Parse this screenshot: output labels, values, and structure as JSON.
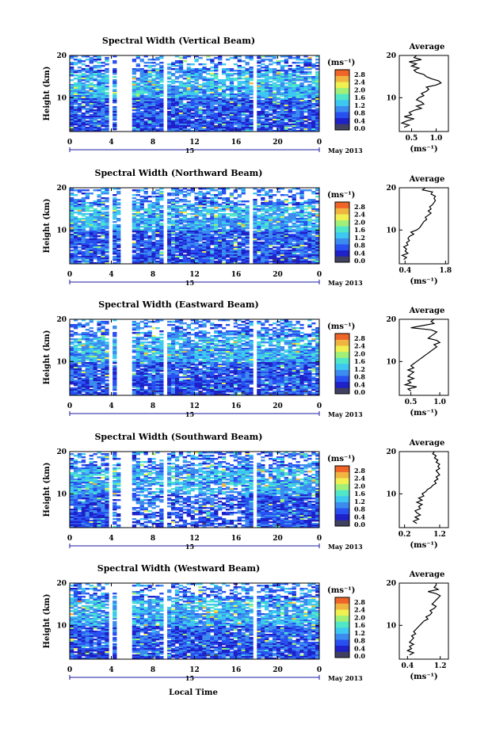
{
  "figure": {
    "xlabel": "Local Time",
    "date_label": "May 2013",
    "day_label": "15",
    "colorbar_unit": "(ms⁻¹)",
    "avg_xlabel": "(ms⁻¹)",
    "avg_title": "Average",
    "ylabel": "Height (km)",
    "colorbar_ticks": [
      "0.0",
      "0.4",
      "0.8",
      "1.2",
      "1.6",
      "2.0",
      "2.4",
      "2.8"
    ],
    "colormap": [
      "#404060",
      "#1e20c8",
      "#2850f0",
      "#3c8cf0",
      "#3cc8f0",
      "#50e6c8",
      "#a0f078",
      "#f0f050",
      "#f0b440",
      "#f06428",
      "#d81818"
    ]
  },
  "chart_data": [
    {
      "type": "heatmap",
      "title": "Spectral Width (Vertical Beam)",
      "xlim": [
        0,
        24
      ],
      "ylim": [
        2,
        20
      ],
      "xticks": [
        "0",
        "4",
        "8",
        "12",
        "16",
        "20",
        "0"
      ],
      "yticks": [
        "10",
        "20"
      ],
      "gaps_hours": [
        [
          3.9,
          4.2
        ],
        [
          4.6,
          5.9
        ],
        [
          8.9,
          9.4
        ],
        [
          17.6,
          17.9
        ]
      ],
      "clim": [
        0,
        3.0
      ],
      "avg": {
        "xticks": [
          "0.5",
          "1.0"
        ],
        "xlim": [
          0.25,
          1.25
        ],
        "yticks": [
          "10",
          "20"
        ],
        "profile": [
          [
            3,
            0.35
          ],
          [
            3.5,
            0.45
          ],
          [
            4,
            0.3
          ],
          [
            4.5,
            0.4
          ],
          [
            5,
            0.55
          ],
          [
            5.5,
            0.35
          ],
          [
            6,
            0.5
          ],
          [
            6.5,
            0.45
          ],
          [
            7,
            0.55
          ],
          [
            7.5,
            0.7
          ],
          [
            8,
            0.6
          ],
          [
            8.5,
            0.75
          ],
          [
            9,
            0.7
          ],
          [
            9.5,
            0.6
          ],
          [
            10,
            0.65
          ],
          [
            10.5,
            0.75
          ],
          [
            11,
            0.7
          ],
          [
            11.5,
            0.8
          ],
          [
            12,
            0.85
          ],
          [
            12.5,
            0.8
          ],
          [
            13,
            1.0
          ],
          [
            13.5,
            1.1
          ],
          [
            14,
            1.05
          ],
          [
            14.5,
            0.9
          ],
          [
            15,
            0.8
          ],
          [
            15.5,
            0.75
          ],
          [
            16,
            0.6
          ],
          [
            16.5,
            0.55
          ],
          [
            17,
            0.65
          ],
          [
            17.5,
            0.5
          ],
          [
            18,
            0.6
          ],
          [
            18.5,
            0.45
          ],
          [
            19,
            0.7
          ],
          [
            19.5,
            0.55
          ],
          [
            20,
            0.6
          ]
        ]
      }
    },
    {
      "type": "heatmap",
      "title": "Spectral Width (Northward Beam)",
      "xlim": [
        0,
        24
      ],
      "ylim": [
        2,
        20
      ],
      "xticks": [
        "0",
        "4",
        "8",
        "12",
        "16",
        "20",
        "0"
      ],
      "yticks": [
        "10",
        "20"
      ],
      "gaps_hours": [
        [
          3.9,
          4.3
        ],
        [
          4.7,
          5.9
        ],
        [
          8.9,
          9.3
        ],
        [
          17.3,
          17.6
        ]
      ],
      "clim": [
        0,
        3.0
      ],
      "avg": {
        "xticks": [
          "0.4",
          "1.8"
        ],
        "xlim": [
          0.2,
          1.9
        ],
        "yticks": [
          "10",
          "20"
        ],
        "profile": [
          [
            3,
            0.35
          ],
          [
            3.5,
            0.45
          ],
          [
            4,
            0.3
          ],
          [
            4.5,
            0.5
          ],
          [
            5,
            0.4
          ],
          [
            5.5,
            0.45
          ],
          [
            6,
            0.35
          ],
          [
            6.5,
            0.5
          ],
          [
            7,
            0.45
          ],
          [
            7.5,
            0.55
          ],
          [
            8,
            0.5
          ],
          [
            8.5,
            0.55
          ],
          [
            9,
            0.7
          ],
          [
            9.5,
            0.6
          ],
          [
            10,
            0.8
          ],
          [
            10.5,
            0.9
          ],
          [
            11,
            0.95
          ],
          [
            11.5,
            1.0
          ],
          [
            12,
            1.05
          ],
          [
            12.5,
            1.15
          ],
          [
            13,
            1.1
          ],
          [
            13.5,
            1.2
          ],
          [
            14,
            1.3
          ],
          [
            14.5,
            1.2
          ],
          [
            15,
            1.3
          ],
          [
            15.5,
            1.25
          ],
          [
            16,
            1.35
          ],
          [
            16.5,
            1.4
          ],
          [
            17,
            1.45
          ],
          [
            17.5,
            1.4
          ],
          [
            18,
            1.45
          ],
          [
            18.5,
            1.3
          ],
          [
            19,
            1.35
          ],
          [
            19.5,
            1.0
          ],
          [
            20,
            1.1
          ]
        ]
      }
    },
    {
      "type": "heatmap",
      "title": "Spectral Width (Eastward Beam)",
      "xlim": [
        0,
        24
      ],
      "ylim": [
        2,
        20
      ],
      "xticks": [
        "0",
        "4",
        "8",
        "12",
        "16",
        "20",
        "0"
      ],
      "yticks": [
        "10",
        "20"
      ],
      "gaps_hours": [
        [
          3.9,
          4.2
        ],
        [
          4.6,
          5.9
        ],
        [
          8.9,
          9.3
        ],
        [
          17.6,
          17.9
        ]
      ],
      "clim": [
        0,
        3.0
      ],
      "avg": {
        "xticks": [
          "0.5",
          "1.0"
        ],
        "xlim": [
          0.3,
          1.15
        ],
        "yticks": [
          "10",
          "20"
        ],
        "profile": [
          [
            3,
            0.5
          ],
          [
            3.5,
            0.45
          ],
          [
            4,
            0.6
          ],
          [
            4.5,
            0.4
          ],
          [
            5,
            0.5
          ],
          [
            5.5,
            0.45
          ],
          [
            6,
            0.55
          ],
          [
            6.5,
            0.45
          ],
          [
            7,
            0.5
          ],
          [
            7.5,
            0.55
          ],
          [
            8,
            0.45
          ],
          [
            8.5,
            0.55
          ],
          [
            9,
            0.5
          ],
          [
            9.5,
            0.55
          ],
          [
            10,
            0.6
          ],
          [
            10.5,
            0.65
          ],
          [
            11,
            0.7
          ],
          [
            11.5,
            0.75
          ],
          [
            12,
            0.8
          ],
          [
            12.5,
            0.85
          ],
          [
            13,
            0.9
          ],
          [
            13.5,
            0.95
          ],
          [
            14,
            0.9
          ],
          [
            14.5,
            1.0
          ],
          [
            15,
            0.95
          ],
          [
            15.5,
            0.8
          ],
          [
            16,
            0.85
          ],
          [
            16.5,
            0.9
          ],
          [
            17,
            0.95
          ],
          [
            17.5,
            0.85
          ],
          [
            18,
            0.5
          ],
          [
            18.5,
            0.7
          ],
          [
            19,
            0.9
          ],
          [
            19.5,
            0.85
          ],
          [
            20,
            0.9
          ]
        ]
      }
    },
    {
      "type": "heatmap",
      "title": "Spectral Width (Southward Beam)",
      "xlim": [
        0,
        24
      ],
      "ylim": [
        2,
        20
      ],
      "xticks": [
        "0",
        "4",
        "8",
        "12",
        "16",
        "20",
        "0"
      ],
      "yticks": [
        "10",
        "20"
      ],
      "gaps_hours": [
        [
          3.9,
          4.3
        ],
        [
          4.7,
          5.9
        ],
        [
          8.9,
          9.3
        ],
        [
          17.6,
          17.9
        ]
      ],
      "clim": [
        0,
        3.0
      ],
      "avg": {
        "xticks": [
          "0.2",
          "1.2"
        ],
        "xlim": [
          0.05,
          1.45
        ],
        "yticks": [
          "10",
          "20"
        ],
        "profile": [
          [
            3,
            0.55
          ],
          [
            3.5,
            0.45
          ],
          [
            4,
            0.6
          ],
          [
            4.5,
            0.5
          ],
          [
            5,
            0.65
          ],
          [
            5.5,
            0.55
          ],
          [
            6,
            0.5
          ],
          [
            6.5,
            0.65
          ],
          [
            7,
            0.6
          ],
          [
            7.5,
            0.7
          ],
          [
            8,
            0.55
          ],
          [
            8.5,
            0.7
          ],
          [
            9,
            0.6
          ],
          [
            9.5,
            0.75
          ],
          [
            10,
            0.7
          ],
          [
            10.5,
            0.8
          ],
          [
            11,
            0.85
          ],
          [
            11.5,
            0.95
          ],
          [
            12,
            1.0
          ],
          [
            12.5,
            1.1
          ],
          [
            13,
            1.05
          ],
          [
            13.5,
            1.15
          ],
          [
            14,
            1.1
          ],
          [
            14.5,
            1.2
          ],
          [
            15,
            1.15
          ],
          [
            15.5,
            1.1
          ],
          [
            16,
            1.2
          ],
          [
            16.5,
            1.15
          ],
          [
            17,
            1.2
          ],
          [
            17.5,
            1.1
          ],
          [
            18,
            1.15
          ],
          [
            18.5,
            1.05
          ],
          [
            19,
            1.1
          ],
          [
            19.5,
            1.0
          ],
          [
            20,
            1.05
          ]
        ]
      }
    },
    {
      "type": "heatmap",
      "title": "Spectral Width (Westward Beam)",
      "xlim": [
        0,
        24
      ],
      "ylim": [
        2,
        20
      ],
      "xticks": [
        "0",
        "4",
        "8",
        "12",
        "16",
        "20",
        "0"
      ],
      "yticks": [
        "10",
        "20"
      ],
      "gaps_hours": [
        [
          3.9,
          4.2
        ],
        [
          4.6,
          5.9
        ],
        [
          8.9,
          9.3
        ],
        [
          17.6,
          17.9
        ]
      ],
      "clim": [
        0,
        3.0
      ],
      "avg": {
        "xticks": [
          "0.4",
          "1.2"
        ],
        "xlim": [
          0.2,
          1.4
        ],
        "yticks": [
          "10",
          "20"
        ],
        "profile": [
          [
            3,
            0.45
          ],
          [
            3.5,
            0.55
          ],
          [
            4,
            0.4
          ],
          [
            4.5,
            0.5
          ],
          [
            5,
            0.45
          ],
          [
            5.5,
            0.55
          ],
          [
            6,
            0.45
          ],
          [
            6.5,
            0.5
          ],
          [
            7,
            0.55
          ],
          [
            7.5,
            0.5
          ],
          [
            8,
            0.6
          ],
          [
            8.5,
            0.55
          ],
          [
            9,
            0.6
          ],
          [
            9.5,
            0.65
          ],
          [
            10,
            0.7
          ],
          [
            10.5,
            0.75
          ],
          [
            11,
            0.8
          ],
          [
            11.5,
            0.9
          ],
          [
            12,
            0.85
          ],
          [
            12.5,
            0.95
          ],
          [
            13,
            1.0
          ],
          [
            13.5,
            0.95
          ],
          [
            14,
            1.05
          ],
          [
            14.5,
            1.1
          ],
          [
            15,
            1.0
          ],
          [
            15.5,
            1.05
          ],
          [
            16,
            1.1
          ],
          [
            16.5,
            1.15
          ],
          [
            17,
            1.2
          ],
          [
            17.5,
            1.1
          ],
          [
            18,
            0.9
          ],
          [
            18.5,
            1.15
          ],
          [
            19,
            1.05
          ],
          [
            19.5,
            1.1
          ],
          [
            20,
            1.1
          ]
        ]
      }
    }
  ]
}
